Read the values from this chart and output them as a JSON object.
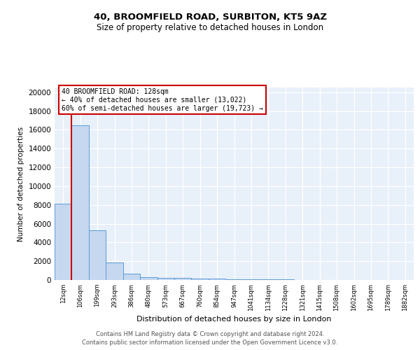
{
  "title1": "40, BROOMFIELD ROAD, SURBITON, KT5 9AZ",
  "title2": "Size of property relative to detached houses in London",
  "xlabel": "Distribution of detached houses by size in London",
  "ylabel": "Number of detached properties",
  "categories": [
    "12sqm",
    "106sqm",
    "199sqm",
    "293sqm",
    "386sqm",
    "480sqm",
    "573sqm",
    "667sqm",
    "760sqm",
    "854sqm",
    "947sqm",
    "1041sqm",
    "1134sqm",
    "1228sqm",
    "1321sqm",
    "1415sqm",
    "1508sqm",
    "1602sqm",
    "1695sqm",
    "1789sqm",
    "1882sqm"
  ],
  "bar_heights": [
    8100,
    16500,
    5300,
    1850,
    700,
    300,
    200,
    200,
    150,
    150,
    100,
    80,
    60,
    40,
    30,
    20,
    15,
    10,
    8,
    5,
    3
  ],
  "bar_color": "#c5d8f0",
  "bar_edge_color": "#5b9bd5",
  "background_color": "#e8f0fa",
  "grid_color": "#ffffff",
  "property_bin_index": 1,
  "annotation_title": "40 BROOMFIELD ROAD: 128sqm",
  "annotation_line1": "← 40% of detached houses are smaller (13,022)",
  "annotation_line2": "60% of semi-detached houses are larger (19,723) →",
  "annotation_box_color": "#ffffff",
  "annotation_border_color": "#cc0000",
  "red_line_color": "#cc0000",
  "ylim": [
    0,
    20500
  ],
  "yticks": [
    0,
    2000,
    4000,
    6000,
    8000,
    10000,
    12000,
    14000,
    16000,
    18000,
    20000
  ],
  "footer1": "Contains HM Land Registry data © Crown copyright and database right 2024.",
  "footer2": "Contains public sector information licensed under the Open Government Licence v3.0."
}
